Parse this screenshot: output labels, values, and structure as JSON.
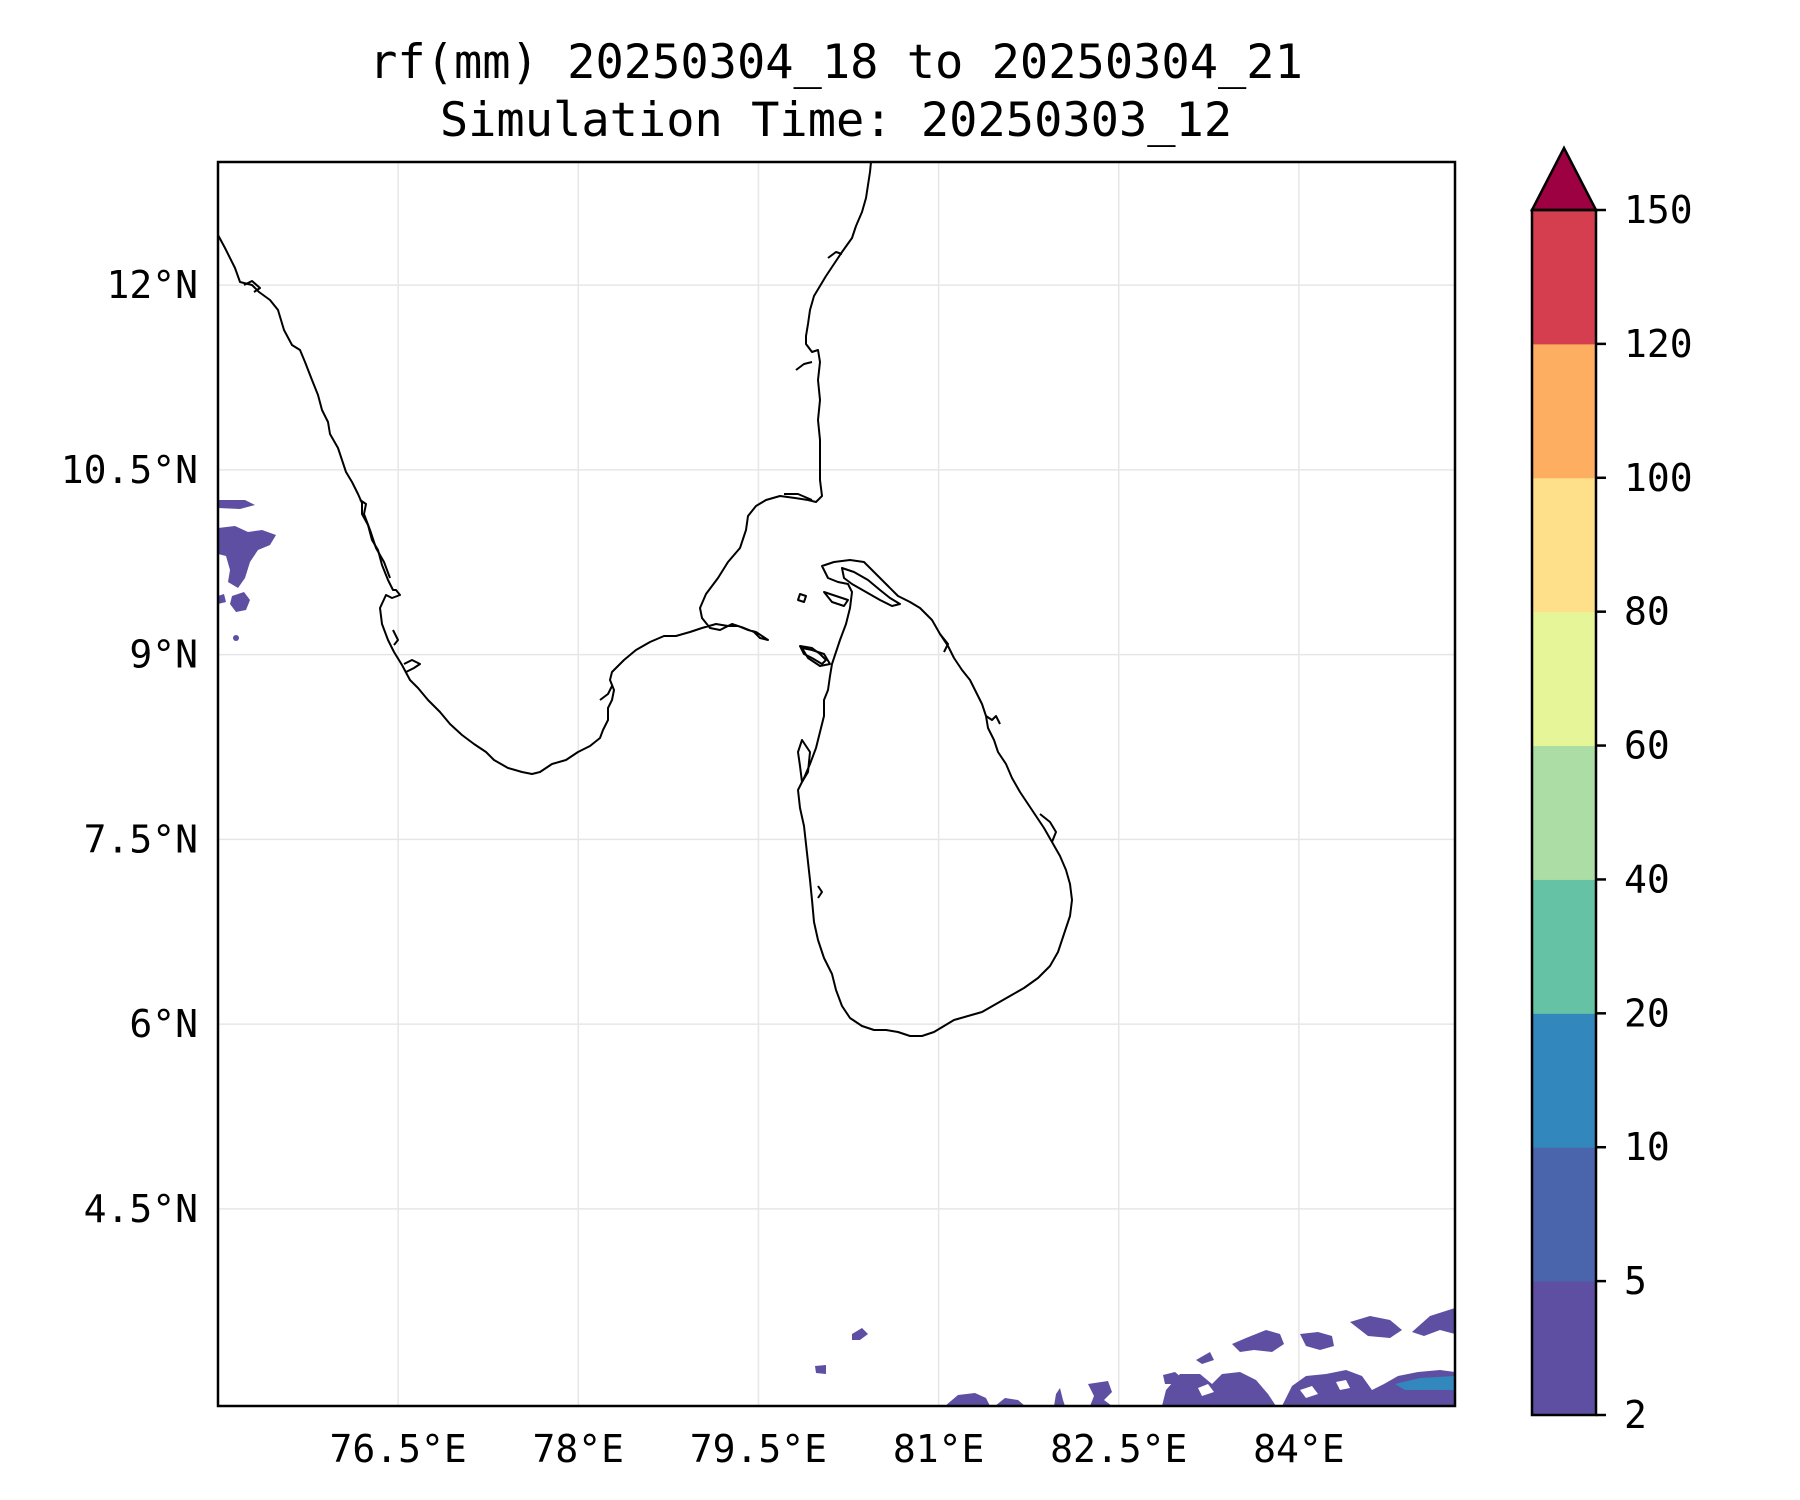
{
  "title": {
    "line1": "rf(mm) 20250304_18 to 20250304_21",
    "line2": "Simulation Time: 20250303_12"
  },
  "map": {
    "lon_range": [
      75.0,
      85.3
    ],
    "lat_range": [
      2.9,
      13.0
    ],
    "x_ticks": [
      {
        "value": 76.5,
        "label": "76.5°E"
      },
      {
        "value": 78.0,
        "label": "78°E"
      },
      {
        "value": 79.5,
        "label": "79.5°E"
      },
      {
        "value": 81.0,
        "label": "81°E"
      },
      {
        "value": 82.5,
        "label": "82.5°E"
      },
      {
        "value": 84.0,
        "label": "84°E"
      }
    ],
    "y_ticks": [
      {
        "value": 12.0,
        "label": "12°N"
      },
      {
        "value": 10.5,
        "label": "10.5°N"
      },
      {
        "value": 9.0,
        "label": "9°N"
      },
      {
        "value": 7.5,
        "label": "7.5°N"
      },
      {
        "value": 6.0,
        "label": "6°N"
      },
      {
        "value": 4.5,
        "label": "4.5°N"
      }
    ],
    "regions": [
      "India southern peninsula coastline",
      "Sri Lanka coastline"
    ]
  },
  "colorbar": {
    "levels": [
      2,
      5,
      10,
      20,
      40,
      60,
      80,
      100,
      120,
      150
    ],
    "labels": [
      "2",
      "5",
      "10",
      "20",
      "40",
      "60",
      "80",
      "100",
      "120",
      "150"
    ],
    "colors": [
      "#5e4fa2",
      "#4b65ad",
      "#3288bd",
      "#66c2a5",
      "#abdda4",
      "#e6f598",
      "#fee08b",
      "#fdae61",
      "#d53e4f"
    ],
    "extend_color": "#9e0142",
    "extend": "max"
  },
  "colors": {
    "rain_light": "#5e4fa2",
    "rain_medium": "#3288bd",
    "coastline": "#000000",
    "gridline": "#e6e6e6"
  }
}
